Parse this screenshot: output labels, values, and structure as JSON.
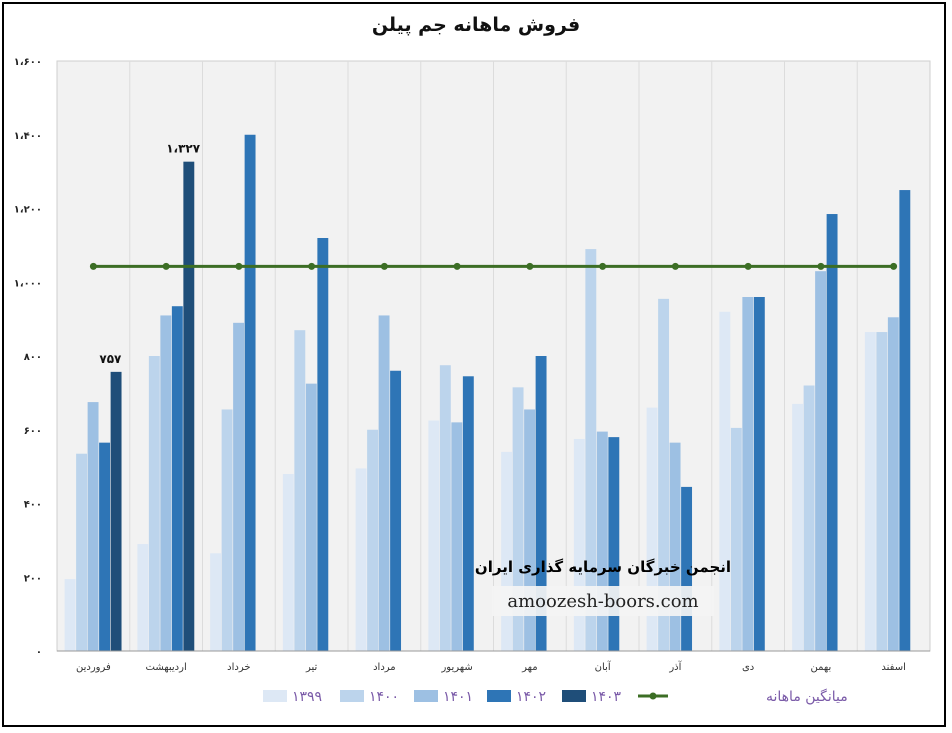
{
  "chart_data": {
    "type": "bar",
    "title": "فروش ماهانه جم پیلن",
    "y_tick_labels": [
      "۰",
      "۲۰۰",
      "۴۰۰",
      "۶۰۰",
      "۸۰۰",
      "۱،۰۰۰",
      "۱،۲۰۰",
      "۱،۴۰۰",
      "۱،۶۰۰"
    ],
    "ylim": [
      0,
      1600
    ],
    "grid": true,
    "legend_position": "bottom",
    "categories": [
      "فروردین",
      "اردیبهشت",
      "خرداد",
      "تیر",
      "مرداد",
      "شهریور",
      "مهر",
      "آبان",
      "آذر",
      "دی",
      "بهمن",
      "اسفند"
    ],
    "series": [
      {
        "name": "۱۳۹۹",
        "color": "#dde8f5",
        "values": [
          195,
          290,
          265,
          480,
          495,
          625,
          540,
          575,
          660,
          920,
          670,
          865
        ]
      },
      {
        "name": "۱۴۰۰",
        "color": "#bcd4ec",
        "values": [
          535,
          800,
          655,
          870,
          600,
          775,
          715,
          1090,
          955,
          605,
          720,
          865
        ]
      },
      {
        "name": "۱۴۰۱",
        "color": "#9dc0e3",
        "values": [
          675,
          910,
          890,
          725,
          910,
          620,
          655,
          595,
          565,
          960,
          1030,
          905
        ]
      },
      {
        "name": "۱۴۰۲",
        "color": "#2e75b6",
        "values": [
          565,
          935,
          1400,
          1120,
          760,
          745,
          800,
          580,
          445,
          960,
          1185,
          1250
        ]
      },
      {
        "name": "۱۴۰۳",
        "color": "#1f4e79",
        "values": [
          757,
          1327,
          null,
          null,
          null,
          null,
          null,
          null,
          null,
          null,
          null,
          null
        ]
      }
    ],
    "average_line": {
      "name": "میانگین ماهانه",
      "color": "#3c6e25",
      "value": 1043
    },
    "data_labels": [
      {
        "series": "۱۴۰۳",
        "category": "فروردین",
        "text": "۷۵۷"
      },
      {
        "series": "۱۴۰۳",
        "category": "اردیبهشت",
        "text": "۱،۳۲۷"
      }
    ]
  },
  "watermark": {
    "line1": "انجمن خبرگان سرمایه گذاری ایران",
    "line2": "amoozesh-boors.com"
  }
}
